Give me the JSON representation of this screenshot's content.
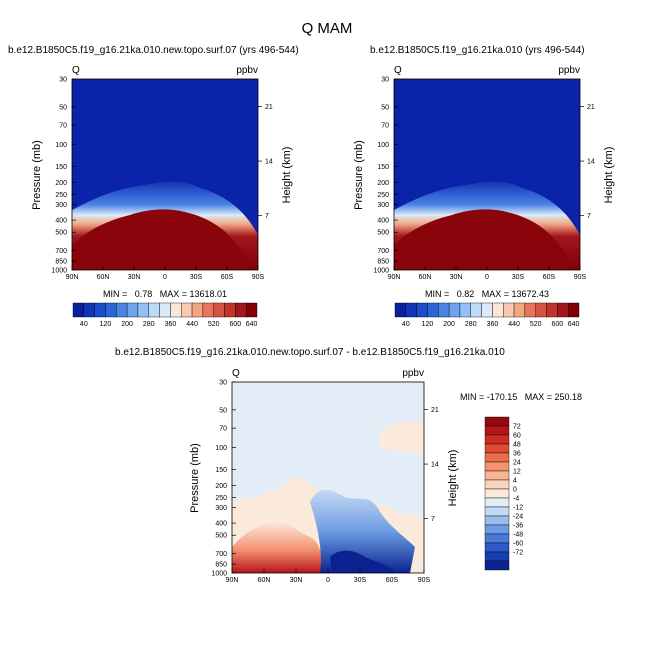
{
  "page_title": "Q MAM",
  "chart_data": [
    {
      "type": "heatmap",
      "title": "b.e12.B1850C5.f19_g16.21ka.010.new.topo.surf.07 (yrs 496-544)",
      "left_label": "Q",
      "right_label": "ppbv",
      "xlabel": "",
      "ylabel": "Pressure (mb)",
      "y2label": "Height (km)",
      "x_ticks": [
        "90N",
        "60N",
        "30N",
        "0",
        "30S",
        "60S",
        "90S"
      ],
      "y_ticks": [
        "30",
        "50",
        "70",
        "100",
        "150",
        "200",
        "250",
        "300",
        "400",
        "500",
        "700",
        "850",
        "1000"
      ],
      "y2_ticks": [
        "21",
        "14",
        "7"
      ],
      "stats": "MIN =   0.78   MAX = 13618.01",
      "colorbar_labels": [
        "40",
        "120",
        "200",
        "280",
        "360",
        "440",
        "520",
        "600",
        "640"
      ],
      "colorbar_colors": [
        "#0a1f9c",
        "#1235b8",
        "#1b4ccc",
        "#2a65d8",
        "#4a83e4",
        "#6ea3ee",
        "#93c0f6",
        "#bcdaf9",
        "#dbeaf8",
        "#fbe6da",
        "#f8c9ae",
        "#f4a582",
        "#e6775c",
        "#d6543f",
        "#c0342a",
        "#a2161d",
        "#820008"
      ]
    },
    {
      "type": "heatmap",
      "title": "b.e12.B1850C5.f19_g16.21ka.010 (yrs 496-544)",
      "left_label": "Q",
      "right_label": "ppbv",
      "xlabel": "",
      "ylabel": "Pressure (mb)",
      "y2label": "Height (km)",
      "x_ticks": [
        "90N",
        "60N",
        "30N",
        "0",
        "30S",
        "60S",
        "90S"
      ],
      "y_ticks": [
        "30",
        "50",
        "70",
        "100",
        "150",
        "200",
        "250",
        "300",
        "400",
        "500",
        "700",
        "850",
        "1000"
      ],
      "y2_ticks": [
        "21",
        "14",
        "7"
      ],
      "stats": "MIN =   0.82   MAX = 13672.43",
      "colorbar_labels": [
        "40",
        "120",
        "200",
        "280",
        "360",
        "440",
        "520",
        "600",
        "640"
      ],
      "colorbar_colors": [
        "#0a1f9c",
        "#1235b8",
        "#1b4ccc",
        "#2a65d8",
        "#4a83e4",
        "#6ea3ee",
        "#93c0f6",
        "#bcdaf9",
        "#dbeaf8",
        "#fbe6da",
        "#f8c9ae",
        "#f4a582",
        "#e6775c",
        "#d6543f",
        "#c0342a",
        "#a2161d",
        "#820008"
      ]
    },
    {
      "type": "heatmap",
      "title": "b.e12.B1850C5.f19_g16.21ka.010.new.topo.surf.07 - b.e12.B1850C5.f19_g16.21ka.010",
      "left_label": "Q",
      "right_label": "ppbv",
      "xlabel": "",
      "ylabel": "Pressure (mb)",
      "y2label": "Height (km)",
      "x_ticks": [
        "90N",
        "60N",
        "30N",
        "0",
        "30S",
        "60S",
        "90S"
      ],
      "y_ticks": [
        "30",
        "50",
        "70",
        "100",
        "150",
        "200",
        "250",
        "300",
        "400",
        "500",
        "700",
        "850",
        "1000"
      ],
      "y2_ticks": [
        "21",
        "14",
        "7"
      ],
      "stats": "MIN = -170.15   MAX = 250.18",
      "colorbar_labels": [
        "72",
        "60",
        "48",
        "36",
        "24",
        "12",
        "4",
        "0",
        "-4",
        "-12",
        "-24",
        "-36",
        "-48",
        "-60",
        "-72"
      ],
      "colorbar_colors": [
        "#960a0f",
        "#b5141a",
        "#cf2a22",
        "#e04a33",
        "#ec6d4c",
        "#f49270",
        "#f8b596",
        "#fbd6bf",
        "#fbe9dc",
        "#e3edf8",
        "#c4d9f3",
        "#9bbdec",
        "#6e9ce3",
        "#4a7ad8",
        "#2c58c8",
        "#173db0",
        "#0a2390"
      ]
    }
  ]
}
